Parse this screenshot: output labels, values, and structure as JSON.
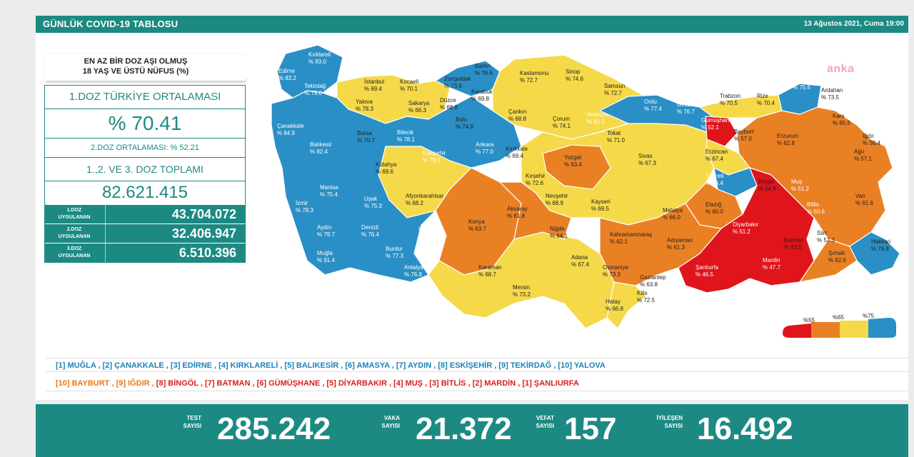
{
  "header": {
    "title": "GÜNLÜK COVID-19 TABLOSU",
    "date": "13 Ağustos 2021, Cuma 19:00"
  },
  "watermark": "anka",
  "summary": {
    "label_line1": "EN AZ BİR DOZ AŞI OLMUŞ",
    "label_line2": "18 YAŞ VE ÜSTÜ NÜFUS (%)",
    "avg1_title": "1.DOZ TÜRKİYE ORTALAMASI",
    "avg1_value": "% 70.41",
    "avg2": "2.DOZ ORTALAMASI: % 52.21",
    "total_title": "1.,2. VE 3. DOZ TOPLAMI",
    "total_value": "82.621.415",
    "doses": [
      {
        "l1": "1.DOZ",
        "l2": "UYGULANAN",
        "value": "43.704.072"
      },
      {
        "l1": "2.DOZ",
        "l2": "UYGULANAN",
        "value": "32.406.947"
      },
      {
        "l1": "3.DOZ",
        "l2": "UYGULANAN",
        "value": "6.510.396"
      }
    ]
  },
  "colors": {
    "red": "#e0141b",
    "orange": "#ea8024",
    "yellow": "#f5d949",
    "blue": "#2a8fc6",
    "teal": "#1c8a83"
  },
  "legend": [
    "%55",
    "%65",
    "%75"
  ],
  "provinces": [
    {
      "name": "Kırklareli",
      "val": "% 83.0"
    },
    {
      "name": "Edirne",
      "val": "% 83.2"
    },
    {
      "name": "Tekirdağ",
      "val": "% 79.0"
    },
    {
      "name": "İstanbul",
      "val": "% 69.4"
    },
    {
      "name": "Kocaeli",
      "val": "% 70.1"
    },
    {
      "name": "Yalova",
      "val": "% 78.3"
    },
    {
      "name": "Sakarya",
      "val": "% 66.3"
    },
    {
      "name": "Zonguldak",
      "val": "% 73.6"
    },
    {
      "name": "Bartın",
      "val": "% 76.6"
    },
    {
      "name": "Karabük",
      "val": "% 69.8"
    },
    {
      "name": "Düzce",
      "val": "% 68.8"
    },
    {
      "name": "Bolu",
      "val": "% 74.8"
    },
    {
      "name": "Kastamonu",
      "val": "% 72.7"
    },
    {
      "name": "Sinop",
      "val": "% 74.6"
    },
    {
      "name": "Samsun",
      "val": "% 72.7"
    },
    {
      "name": "Çankırı",
      "val": "% 68.8"
    },
    {
      "name": "Çorum",
      "val": "% 74.1"
    },
    {
      "name": "Amasya",
      "val": "% 81.2"
    },
    {
      "name": "Tokat",
      "val": "% 71.0"
    },
    {
      "name": "Ordu",
      "val": "% 77.4"
    },
    {
      "name": "Giresun",
      "val": "% 76.7"
    },
    {
      "name": "Trabzon",
      "val": "% 70.5"
    },
    {
      "name": "Rize",
      "val": "% 70.4"
    },
    {
      "name": "Artvin",
      "val": "% 75.6"
    },
    {
      "name": "Ardahan",
      "val": "% 73.5"
    },
    {
      "name": "Gümüşhane",
      "val": "% 52.1"
    },
    {
      "name": "Bayburt",
      "val": "% 57.0"
    },
    {
      "name": "Kars",
      "val": "% 65.5"
    },
    {
      "name": "Erzurum",
      "val": "% 62.8"
    },
    {
      "name": "Iğdır",
      "val": "% 56.4"
    },
    {
      "name": "Ağrı",
      "val": "% 57.1"
    },
    {
      "name": "Çanakkale",
      "val": "% 84.9"
    },
    {
      "name": "Balıkesir",
      "val": "% 82.4"
    },
    {
      "name": "Bursa",
      "val": "% 70.7"
    },
    {
      "name": "Bilecik",
      "val": "% 78.1"
    },
    {
      "name": "Eskişehir",
      "val": "% 79.1"
    },
    {
      "name": "Ankara",
      "val": "% 77.0"
    },
    {
      "name": "Kırıkkale",
      "val": "% 69.4"
    },
    {
      "name": "Yozgat",
      "val": "% 63.4"
    },
    {
      "name": "Sivas",
      "val": "% 67.3"
    },
    {
      "name": "Erzincan",
      "val": "% 67.4"
    },
    {
      "name": "Tunceli",
      "val": "% 76.4"
    },
    {
      "name": "Kütahya",
      "val": "% 69.6"
    },
    {
      "name": "Kırşehir",
      "val": "% 72.6"
    },
    {
      "name": "Nevşehir",
      "val": "% 68.9"
    },
    {
      "name": "Kayseri",
      "val": "% 69.5"
    },
    {
      "name": "Manisa",
      "val": "% 75.4"
    },
    {
      "name": "İzmir",
      "val": "% 78.3"
    },
    {
      "name": "Uşak",
      "val": "% 75.3"
    },
    {
      "name": "Afyonkarahisar",
      "val": "% 68.2"
    },
    {
      "name": "Konya",
      "val": "% 63.7"
    },
    {
      "name": "Aksaray",
      "val": "% 61.8"
    },
    {
      "name": "Malatya",
      "val": "% 66.0"
    },
    {
      "name": "Elazığ",
      "val": "% 60.0"
    },
    {
      "name": "Bingöl",
      "val": "% 54.9"
    },
    {
      "name": "Muş",
      "val": "% 51.2"
    },
    {
      "name": "Bitlis",
      "val": "% 50.6"
    },
    {
      "name": "Van",
      "val": "% 61.6"
    },
    {
      "name": "Aydın",
      "val": "% 79.7"
    },
    {
      "name": "Denizli",
      "val": "% 76.4"
    },
    {
      "name": "Isparta",
      "val": "% 75.6"
    },
    {
      "name": "Burdur",
      "val": "% 77.3"
    },
    {
      "name": "Muğla",
      "val": "% 91.4"
    },
    {
      "name": "Antalya",
      "val": "% 76.8"
    },
    {
      "name": "Niğde",
      "val": "% 64.1"
    },
    {
      "name": "Kahramanmaraş",
      "val": "% 62.1"
    },
    {
      "name": "Adıyaman",
      "val": "% 61.3"
    },
    {
      "name": "Diyarbakır",
      "val": "% 51.2"
    },
    {
      "name": "Batman",
      "val": "% 53.5"
    },
    {
      "name": "Siirt",
      "val": "% 57.3"
    },
    {
      "name": "Şırnak",
      "val": "% 62.6"
    },
    {
      "name": "Hakkari",
      "val": "% 76.8"
    },
    {
      "name": "Karaman",
      "val": "% 68.7"
    },
    {
      "name": "Mersin",
      "val": "% 73.2"
    },
    {
      "name": "Adana",
      "val": "% 67.4"
    },
    {
      "name": "Osmaniye",
      "val": "% 73.3"
    },
    {
      "name": "Gaziantep",
      "val": "% 63.8"
    },
    {
      "name": "Kilis",
      "val": "% 72.5"
    },
    {
      "name": "Hatay",
      "val": "% 66.8"
    },
    {
      "name": "Şanlıurfa",
      "val": "% 46.5"
    },
    {
      "name": "Mardin",
      "val": "% 47.7"
    }
  ],
  "top_list": "[1] MUĞLA , [2] ÇANAKKALE , [3] EDİRNE , [4] KIRKLARELİ , [5] BALIKESİR , [6] AMASYA , [7] AYDIN , [8] ESKİŞEHİR , [9] TEKİRDAĞ , [10] YALOVA",
  "bottom_list": [
    {
      "t": "[10] BAYBURT , ",
      "c": "o"
    },
    {
      "t": "[9] IĞDIR , ",
      "c": "o"
    },
    {
      "t": "[8] BİNGÖL , ",
      "c": "r"
    },
    {
      "t": "[7] BATMAN , ",
      "c": "r"
    },
    {
      "t": "[6] GÜMÜŞHANE , ",
      "c": "r"
    },
    {
      "t": "[5] DİYARBAKIR , ",
      "c": "r"
    },
    {
      "t": "[4] MUŞ , ",
      "c": "r"
    },
    {
      "t": "[3] BİTLİS , ",
      "c": "r"
    },
    {
      "t": "[2] MARDİN , ",
      "c": "r"
    },
    {
      "t": "[1] ŞANLIURFA",
      "c": "r"
    }
  ],
  "footer": {
    "test_l1": "TEST",
    "test_l2": "SAYISI",
    "test": "285.242",
    "case_l1": "VAKA",
    "case_l2": "SAYISI",
    "case": "21.372",
    "death_l1": "VEFAT",
    "death_l2": "SAYISI",
    "death": "157",
    "rec_l1": "İYİLEŞEN",
    "rec_l2": "SAYISI",
    "rec": "16.492"
  }
}
